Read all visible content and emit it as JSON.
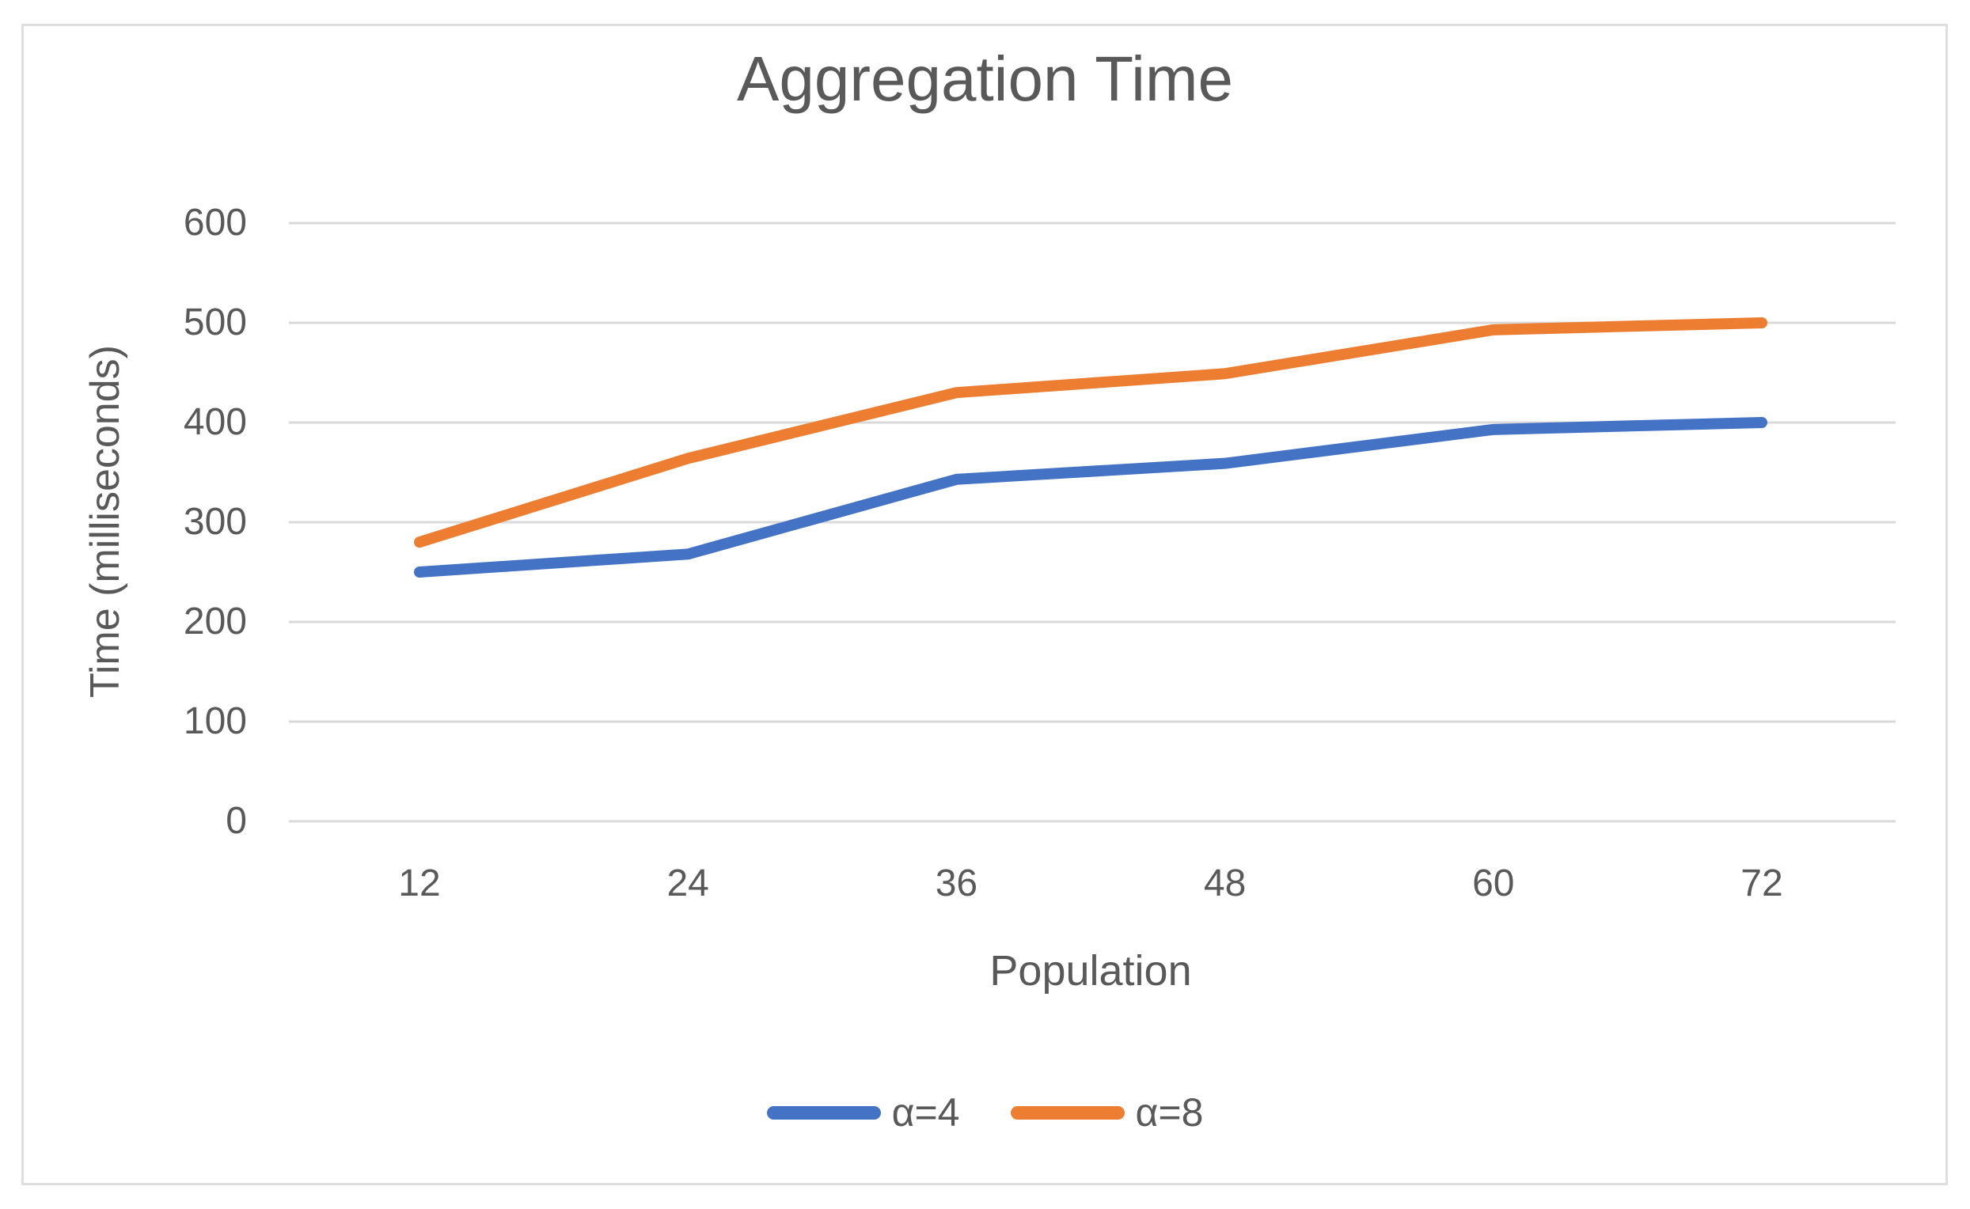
{
  "chart": {
    "title": "Aggregation Time",
    "y_axis_title": "Time (milliseconds)",
    "x_axis_title": "Population"
  },
  "chart_data": {
    "type": "line",
    "title": "Aggregation Time",
    "xlabel": "Population",
    "ylabel": "Time (milliseconds)",
    "categories": [
      "12",
      "24",
      "36",
      "48",
      "60",
      "72"
    ],
    "series": [
      {
        "name": "α=4",
        "color": "#4472C4",
        "values": [
          250,
          268,
          343,
          359,
          393,
          400
        ]
      },
      {
        "name": "α=8",
        "color": "#ED7D31",
        "values": [
          280,
          364,
          430,
          449,
          493,
          500
        ]
      }
    ],
    "ylim": [
      0,
      600
    ],
    "y_ticks": [
      0,
      100,
      200,
      300,
      400,
      500,
      600
    ],
    "grid": true,
    "legend_position": "bottom",
    "text_color": "#595959",
    "gridline_color": "#D9D9D9"
  }
}
